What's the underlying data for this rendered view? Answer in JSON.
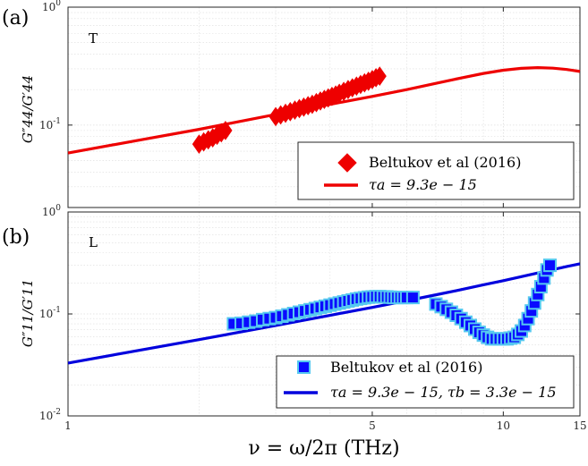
{
  "colors": {
    "panel_a": "#ee0000",
    "panel_b_line": "#0000dd",
    "panel_b_marker_fill": "#0a0aff",
    "panel_b_marker_edge": "#55c8f0",
    "grid": "#dcdcdc",
    "axis": "#262626"
  },
  "xlabel": "ν = ω/2π (THz)",
  "chart_data": [
    {
      "type": "scatter+line",
      "panel": "(a)",
      "mode_label": "T",
      "ylabel": "G″44/G′44",
      "xscale": "log",
      "yscale": "log",
      "xlim": [
        1,
        15
      ],
      "ylim": [
        0.02,
        1
      ],
      "xticks": [
        "1",
        "5",
        "10",
        "15"
      ],
      "yticks": [
        {
          "value": 1,
          "base": "10",
          "exp": "0"
        },
        {
          "value": 0.1,
          "base": "10",
          "exp": "-1"
        }
      ],
      "grid": true,
      "legend_position": "bottom-right",
      "series": [
        {
          "name": "Beltukov et al (2016)",
          "marker": "diamond",
          "points": [
            [
              2.0,
              0.069
            ],
            [
              2.05,
              0.072
            ],
            [
              2.1,
              0.075
            ],
            [
              2.15,
              0.078
            ],
            [
              2.2,
              0.082
            ],
            [
              2.25,
              0.086
            ],
            [
              2.3,
              0.09
            ],
            [
              3.0,
              0.118
            ],
            [
              3.08,
              0.122
            ],
            [
              3.16,
              0.126
            ],
            [
              3.24,
              0.13
            ],
            [
              3.32,
              0.134
            ],
            [
              3.4,
              0.138
            ],
            [
              3.48,
              0.142
            ],
            [
              3.56,
              0.146
            ],
            [
              3.64,
              0.15
            ],
            [
              3.72,
              0.155
            ],
            [
              3.8,
              0.16
            ],
            [
              3.88,
              0.165
            ],
            [
              3.96,
              0.17
            ],
            [
              4.04,
              0.175
            ],
            [
              4.12,
              0.18
            ],
            [
              4.2,
              0.186
            ],
            [
              4.3,
              0.193
            ],
            [
              4.4,
              0.2
            ],
            [
              4.5,
              0.207
            ],
            [
              4.6,
              0.214
            ],
            [
              4.7,
              0.221
            ],
            [
              4.8,
              0.228
            ],
            [
              4.9,
              0.235
            ],
            [
              5.0,
              0.243
            ],
            [
              5.1,
              0.252
            ],
            [
              5.2,
              0.26
            ]
          ]
        },
        {
          "name": "τa = 9.3e − 15",
          "style": "line",
          "points": [
            [
              1,
              0.058
            ],
            [
              1.5,
              0.076
            ],
            [
              2,
              0.092
            ],
            [
              3,
              0.123
            ],
            [
              4,
              0.15
            ],
            [
              5,
              0.175
            ],
            [
              6,
              0.2
            ],
            [
              7,
              0.226
            ],
            [
              8,
              0.251
            ],
            [
              9,
              0.274
            ],
            [
              10,
              0.292
            ],
            [
              11,
              0.303
            ],
            [
              12,
              0.307
            ],
            [
              13,
              0.304
            ],
            [
              14,
              0.296
            ],
            [
              15,
              0.285
            ]
          ]
        }
      ]
    },
    {
      "type": "scatter+line",
      "panel": "(b)",
      "mode_label": "L",
      "ylabel": "G″11/G′11",
      "xscale": "log",
      "yscale": "log",
      "xlim": [
        1,
        15
      ],
      "ylim": [
        0.01,
        1
      ],
      "xticks": [
        "1",
        "5",
        "10",
        "15"
      ],
      "yticks": [
        {
          "value": 1,
          "base": "10",
          "exp": "0"
        },
        {
          "value": 0.1,
          "base": "10",
          "exp": "-1"
        },
        {
          "value": 0.01,
          "base": "10",
          "exp": "-2"
        }
      ],
      "grid": true,
      "legend_position": "bottom-right",
      "series": [
        {
          "name": "Beltukov et al (2016)",
          "marker": "square",
          "points": [
            [
              2.4,
              0.08
            ],
            [
              2.5,
              0.081
            ],
            [
              2.6,
              0.083
            ],
            [
              2.7,
              0.085
            ],
            [
              2.8,
              0.088
            ],
            [
              2.9,
              0.09
            ],
            [
              3.0,
              0.092
            ],
            [
              3.1,
              0.095
            ],
            [
              3.2,
              0.098
            ],
            [
              3.3,
              0.101
            ],
            [
              3.4,
              0.104
            ],
            [
              3.5,
              0.107
            ],
            [
              3.6,
              0.11
            ],
            [
              3.7,
              0.113
            ],
            [
              3.8,
              0.116
            ],
            [
              3.9,
              0.119
            ],
            [
              4.0,
              0.122
            ],
            [
              4.1,
              0.125
            ],
            [
              4.2,
              0.128
            ],
            [
              4.3,
              0.131
            ],
            [
              4.4,
              0.134
            ],
            [
              4.5,
              0.137
            ],
            [
              4.6,
              0.14
            ],
            [
              4.7,
              0.142
            ],
            [
              4.8,
              0.144
            ],
            [
              4.9,
              0.146
            ],
            [
              5.0,
              0.147
            ],
            [
              5.1,
              0.148
            ],
            [
              5.2,
              0.148
            ],
            [
              5.3,
              0.147
            ],
            [
              5.4,
              0.147
            ],
            [
              5.5,
              0.146
            ],
            [
              5.6,
              0.145
            ],
            [
              5.7,
              0.145
            ],
            [
              5.8,
              0.145
            ],
            [
              5.9,
              0.145
            ],
            [
              6.0,
              0.145
            ],
            [
              6.2,
              0.145
            ],
            [
              7.0,
              0.125
            ],
            [
              7.2,
              0.118
            ],
            [
              7.4,
              0.111
            ],
            [
              7.6,
              0.104
            ],
            [
              7.8,
              0.097
            ],
            [
              8.0,
              0.09
            ],
            [
              8.2,
              0.083
            ],
            [
              8.4,
              0.077
            ],
            [
              8.6,
              0.071
            ],
            [
              8.8,
              0.066
            ],
            [
              9.0,
              0.062
            ],
            [
              9.2,
              0.059
            ],
            [
              9.4,
              0.057
            ],
            [
              9.6,
              0.057
            ],
            [
              9.8,
              0.057
            ],
            [
              10.0,
              0.057
            ],
            [
              10.2,
              0.057
            ],
            [
              10.4,
              0.058
            ],
            [
              10.6,
              0.059
            ],
            [
              10.8,
              0.063
            ],
            [
              11.0,
              0.068
            ],
            [
              11.2,
              0.077
            ],
            [
              11.4,
              0.09
            ],
            [
              11.6,
              0.107
            ],
            [
              11.8,
              0.128
            ],
            [
              12.0,
              0.155
            ],
            [
              12.2,
              0.185
            ],
            [
              12.4,
              0.225
            ],
            [
              12.6,
              0.27
            ],
            [
              12.8,
              0.3
            ]
          ]
        },
        {
          "name": "τa = 9.3e − 15, τb = 3.3e − 15",
          "style": "line",
          "points": [
            [
              1,
              0.033
            ],
            [
              1.5,
              0.045
            ],
            [
              2,
              0.056
            ],
            [
              3,
              0.077
            ],
            [
              4,
              0.097
            ],
            [
              5,
              0.116
            ],
            [
              6,
              0.135
            ],
            [
              7,
              0.154
            ],
            [
              8,
              0.173
            ],
            [
              9,
              0.193
            ],
            [
              10,
              0.212
            ],
            [
              11,
              0.232
            ],
            [
              12,
              0.252
            ],
            [
              13,
              0.272
            ],
            [
              14,
              0.292
            ],
            [
              15,
              0.31
            ]
          ]
        }
      ]
    }
  ]
}
